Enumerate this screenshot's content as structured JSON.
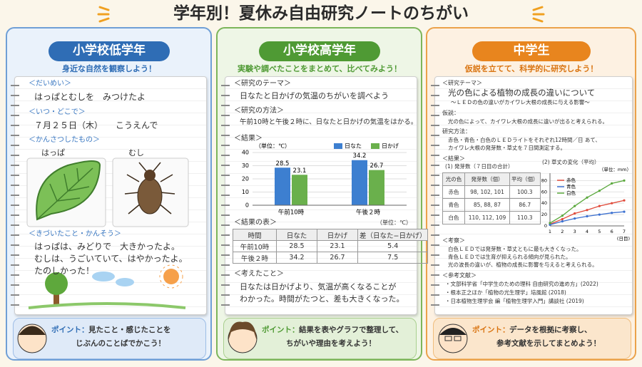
{
  "title": "学年別！夏休み自由研究ノートのちがい",
  "low": {
    "header": "小学校低学年",
    "subtitle": "身近な自然を観察しよう！",
    "title_label": "＜だいめい＞",
    "title_text": "はっぱとむしを　みつけたよ",
    "when_label": "＜いつ・どこで＞",
    "when_text": "７月２５日（木）　　こうえんで",
    "observed_label": "＜かんさつしたもの＞",
    "leaf_label": "はっぱ",
    "bug_label": "むし",
    "notes_label": "＜きづいたこと・かんそう＞",
    "notes": [
      "はっぱは、みどりで　大きかったよ。",
      "むしは、うごいていて、はやかったよ。",
      "たのしかった！"
    ],
    "point_label": "ポイント：",
    "point": [
      "見たこと・感じたことを",
      "じぶんのことばでかこう！"
    ]
  },
  "mid": {
    "header": "小学校高学年",
    "subtitle": "実験や調べたことをまとめて、比べてみよう！",
    "theme_label": "＜研究のテーマ＞",
    "theme": "日なたと日かげの気温のちがいを調べよう",
    "method_label": "＜研究の方法＞",
    "method": "午前10時と午後２時に、日なたと日かげの気温をはかる。",
    "result_label": "＜結果＞",
    "chart_data": {
      "type": "bar",
      "unit": "（単位：℃）",
      "categories": [
        "午前10時",
        "午後２時"
      ],
      "series": [
        {
          "name": "日なた",
          "color": "#3d7fd0",
          "values": [
            28.5,
            34.2
          ]
        },
        {
          "name": "日かげ",
          "color": "#6ab04c",
          "values": [
            23.1,
            26.7
          ]
        }
      ],
      "ylim": [
        0,
        40
      ],
      "yticks": [
        0,
        10,
        20,
        30,
        40
      ]
    },
    "table_label": "＜結果の表＞",
    "table_unit": "（単位：℃）",
    "table": {
      "header": [
        "時間",
        "日なた",
        "日かげ",
        "差（日なた−日かげ）"
      ],
      "rows": [
        [
          "午前10時",
          28.5,
          23.1,
          5.4
        ],
        [
          "午後２時",
          34.2,
          26.7,
          7.5
        ]
      ]
    },
    "thoughts_label": "＜考えたこと＞",
    "thoughts": [
      "日なたは日かげより、気温が高くなることが",
      "わかった。時間がたつと、差も大きくなった。"
    ],
    "point_label": "ポイント：",
    "point": [
      "結果を表やグラフで整理して、",
      "ちがいや理由を考えよう！"
    ]
  },
  "high": {
    "header": "中学生",
    "subtitle": "仮説を立てて、科学的に研究しよう！",
    "theme_label": "＜研究テーマ＞",
    "theme": "光の色による植物の成長の違いについて",
    "theme_sub": "〜ＬＥＤの色の違いがカイワレ大根の成長に与える影響〜",
    "hypothesis_label": "仮説：",
    "hypothesis": "光の色によって、カイワレ大根の成長に違いが出ると考えられる。",
    "method_label": "研究方法：",
    "method": [
      "赤色・青色・白色のＬＥＤライトをそれぞれ12時間／日 あて、",
      "カイワレ大根の発芽数・草丈を７日間測定する。"
    ],
    "result_label": "＜結果＞",
    "table_title": "(1) 発芽数（７日目の合計）",
    "table": {
      "header": [
        "光の色",
        "発芽数（個）",
        "平均（個）"
      ],
      "rows": [
        [
          "赤色",
          "98, 102, 101",
          100.3
        ],
        [
          "青色",
          "85, 88, 87",
          86.7
        ],
        [
          "白色",
          "110, 112, 109",
          110.3
        ]
      ]
    },
    "chart_title": "(2) 草丈の変化（平均）",
    "chart_data": {
      "type": "line",
      "unit": "（単位：mm）",
      "x": [
        1,
        2,
        3,
        4,
        5,
        6,
        7
      ],
      "xlabel": "(日目)",
      "ylim": [
        0,
        88
      ],
      "yticks": [
        0,
        20,
        40,
        60,
        80
      ],
      "series": [
        {
          "name": "赤色",
          "color": "#e04a3a",
          "values": [
            3,
            12,
            22,
            28,
            35,
            40,
            45
          ]
        },
        {
          "name": "青色",
          "color": "#3a6fd0",
          "values": [
            2,
            8,
            13,
            17,
            20,
            23,
            25
          ]
        },
        {
          "name": "白色",
          "color": "#5aa83c",
          "values": [
            5,
            18,
            35,
            50,
            62,
            75,
            80
          ]
        }
      ]
    },
    "discussion_label": "＜考察＞",
    "discussion": [
      "白色ＬＥＤでは発芽数・草丈ともに最も大きくなった。",
      "青色ＬＥＤでは生育が抑えられる傾向が見られた。",
      "光の波長の違いが、植物の成長に影響を与えると考えられる。"
    ],
    "refs_label": "＜参考文献＞",
    "refs": [
      "・文部科学省「中学生のための理科 自由研究の進め方」(2022)",
      "・根本正之ほか「植物の光生理学」培風館 (2018)",
      "・日本植物生理学会 編「植物生理学入門」講談社 (2019)"
    ],
    "point_label": "ポイント：",
    "point": [
      "データを根拠に考察し、",
      "参考文献を示してまとめよう！"
    ]
  }
}
